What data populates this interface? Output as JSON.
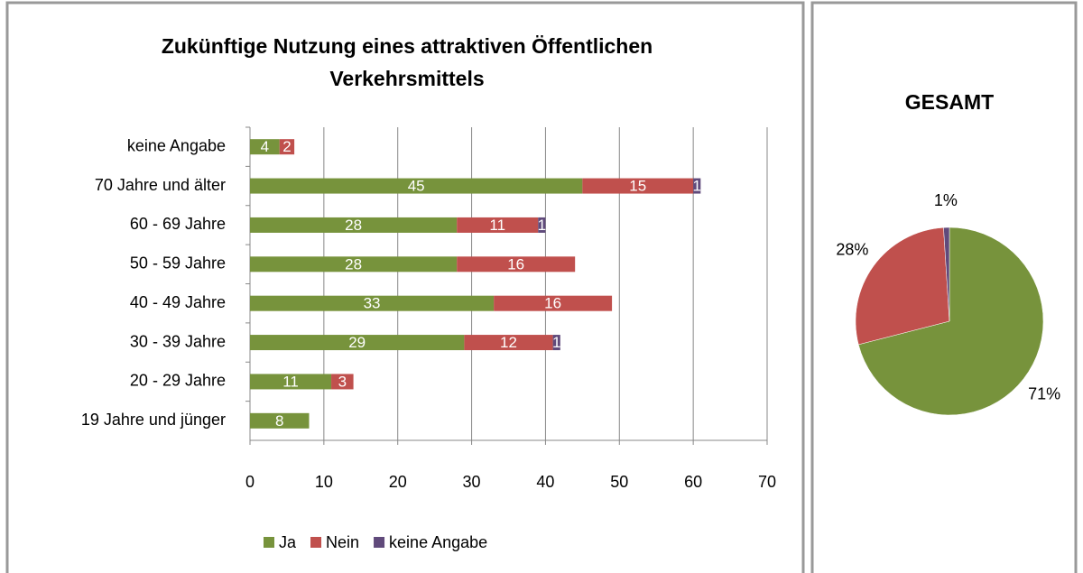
{
  "chart_data": [
    {
      "type": "bar",
      "orientation": "horizontal",
      "stacked": true,
      "title": "Zukünftige Nutzung eines attraktiven Öffentlichen Verkehrsmittels",
      "categories": [
        "keine Angabe",
        "70 Jahre und älter",
        "60 - 69 Jahre",
        "50 - 59 Jahre",
        "40 - 49 Jahre",
        "30 - 39 Jahre",
        "20 - 29 Jahre",
        "19 Jahre und jünger"
      ],
      "series": [
        {
          "name": "Ja",
          "color": "#77933c",
          "values": [
            4,
            45,
            28,
            28,
            33,
            29,
            11,
            8
          ]
        },
        {
          "name": "Nein",
          "color": "#c0504d",
          "values": [
            2,
            15,
            11,
            16,
            16,
            12,
            3,
            null
          ]
        },
        {
          "name": "keine Angabe",
          "color": "#604a7b",
          "values": [
            null,
            1,
            1,
            null,
            null,
            1,
            null,
            null
          ]
        }
      ],
      "xlim": [
        0,
        70
      ],
      "xticks": [
        0,
        10,
        20,
        30,
        40,
        50,
        60,
        70
      ],
      "grid": true,
      "legend": "bottom"
    },
    {
      "type": "pie",
      "title": "GESAMT",
      "values": [
        71,
        28,
        1
      ],
      "value_labels": [
        "71%",
        "28%",
        "1%"
      ],
      "colors": [
        "#77933c",
        "#c0504d",
        "#604a7b"
      ]
    }
  ]
}
